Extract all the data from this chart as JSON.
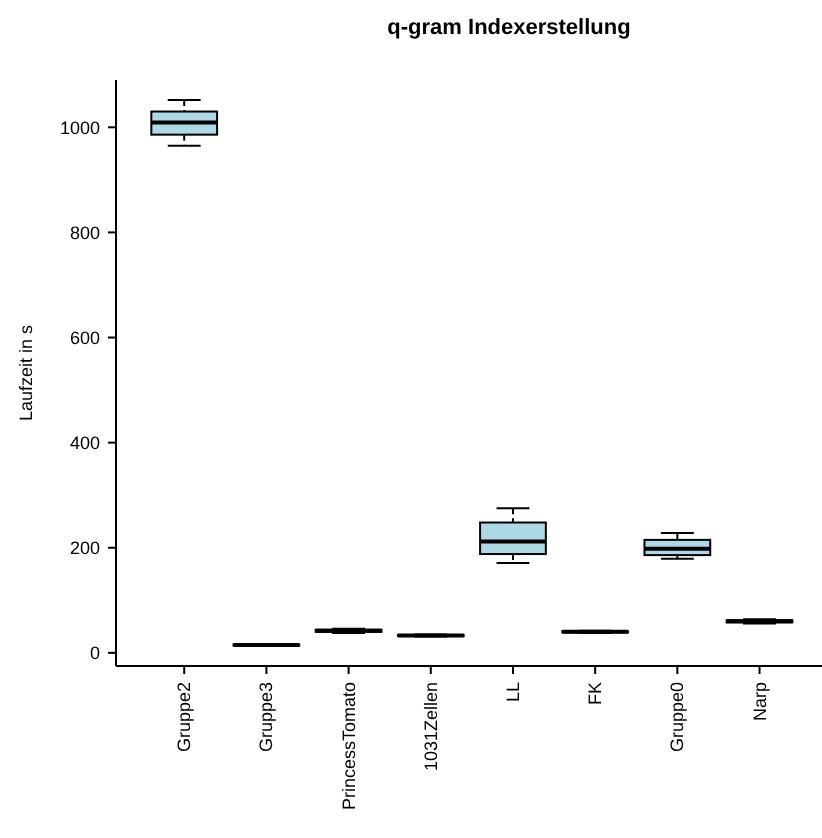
{
  "chart_data": {
    "type": "box",
    "title": "q-gram Indexerstellung",
    "ylabel": "Laufzeit in s",
    "categories": [
      "Gruppe2",
      "Gruppe3",
      "PrincessTomato",
      "1031Zellen",
      "LL",
      "FK",
      "Gruppe0",
      "Narp"
    ],
    "boxes": [
      {
        "low": 965,
        "q1": 986,
        "median": 1009,
        "q3": 1030,
        "high": 1052
      },
      {
        "low": 13,
        "q1": 14,
        "median": 15,
        "q3": 16,
        "high": 17
      },
      {
        "low": 38,
        "q1": 40,
        "median": 42,
        "q3": 44,
        "high": 46
      },
      {
        "low": 31,
        "q1": 32,
        "median": 33,
        "q3": 34,
        "high": 35
      },
      {
        "low": 171,
        "q1": 188,
        "median": 212,
        "q3": 248,
        "high": 275
      },
      {
        "low": 38,
        "q1": 39,
        "median": 40,
        "q3": 41,
        "high": 42
      },
      {
        "low": 179,
        "q1": 186,
        "median": 198,
        "q3": 215,
        "high": 228
      },
      {
        "low": 56,
        "q1": 58,
        "median": 60,
        "q3": 62,
        "high": 64
      }
    ],
    "color": "#add8e6",
    "ylim": [
      -25,
      1090
    ],
    "yticks": [
      0,
      200,
      400,
      600,
      800,
      1000
    ],
    "grid": false
  }
}
